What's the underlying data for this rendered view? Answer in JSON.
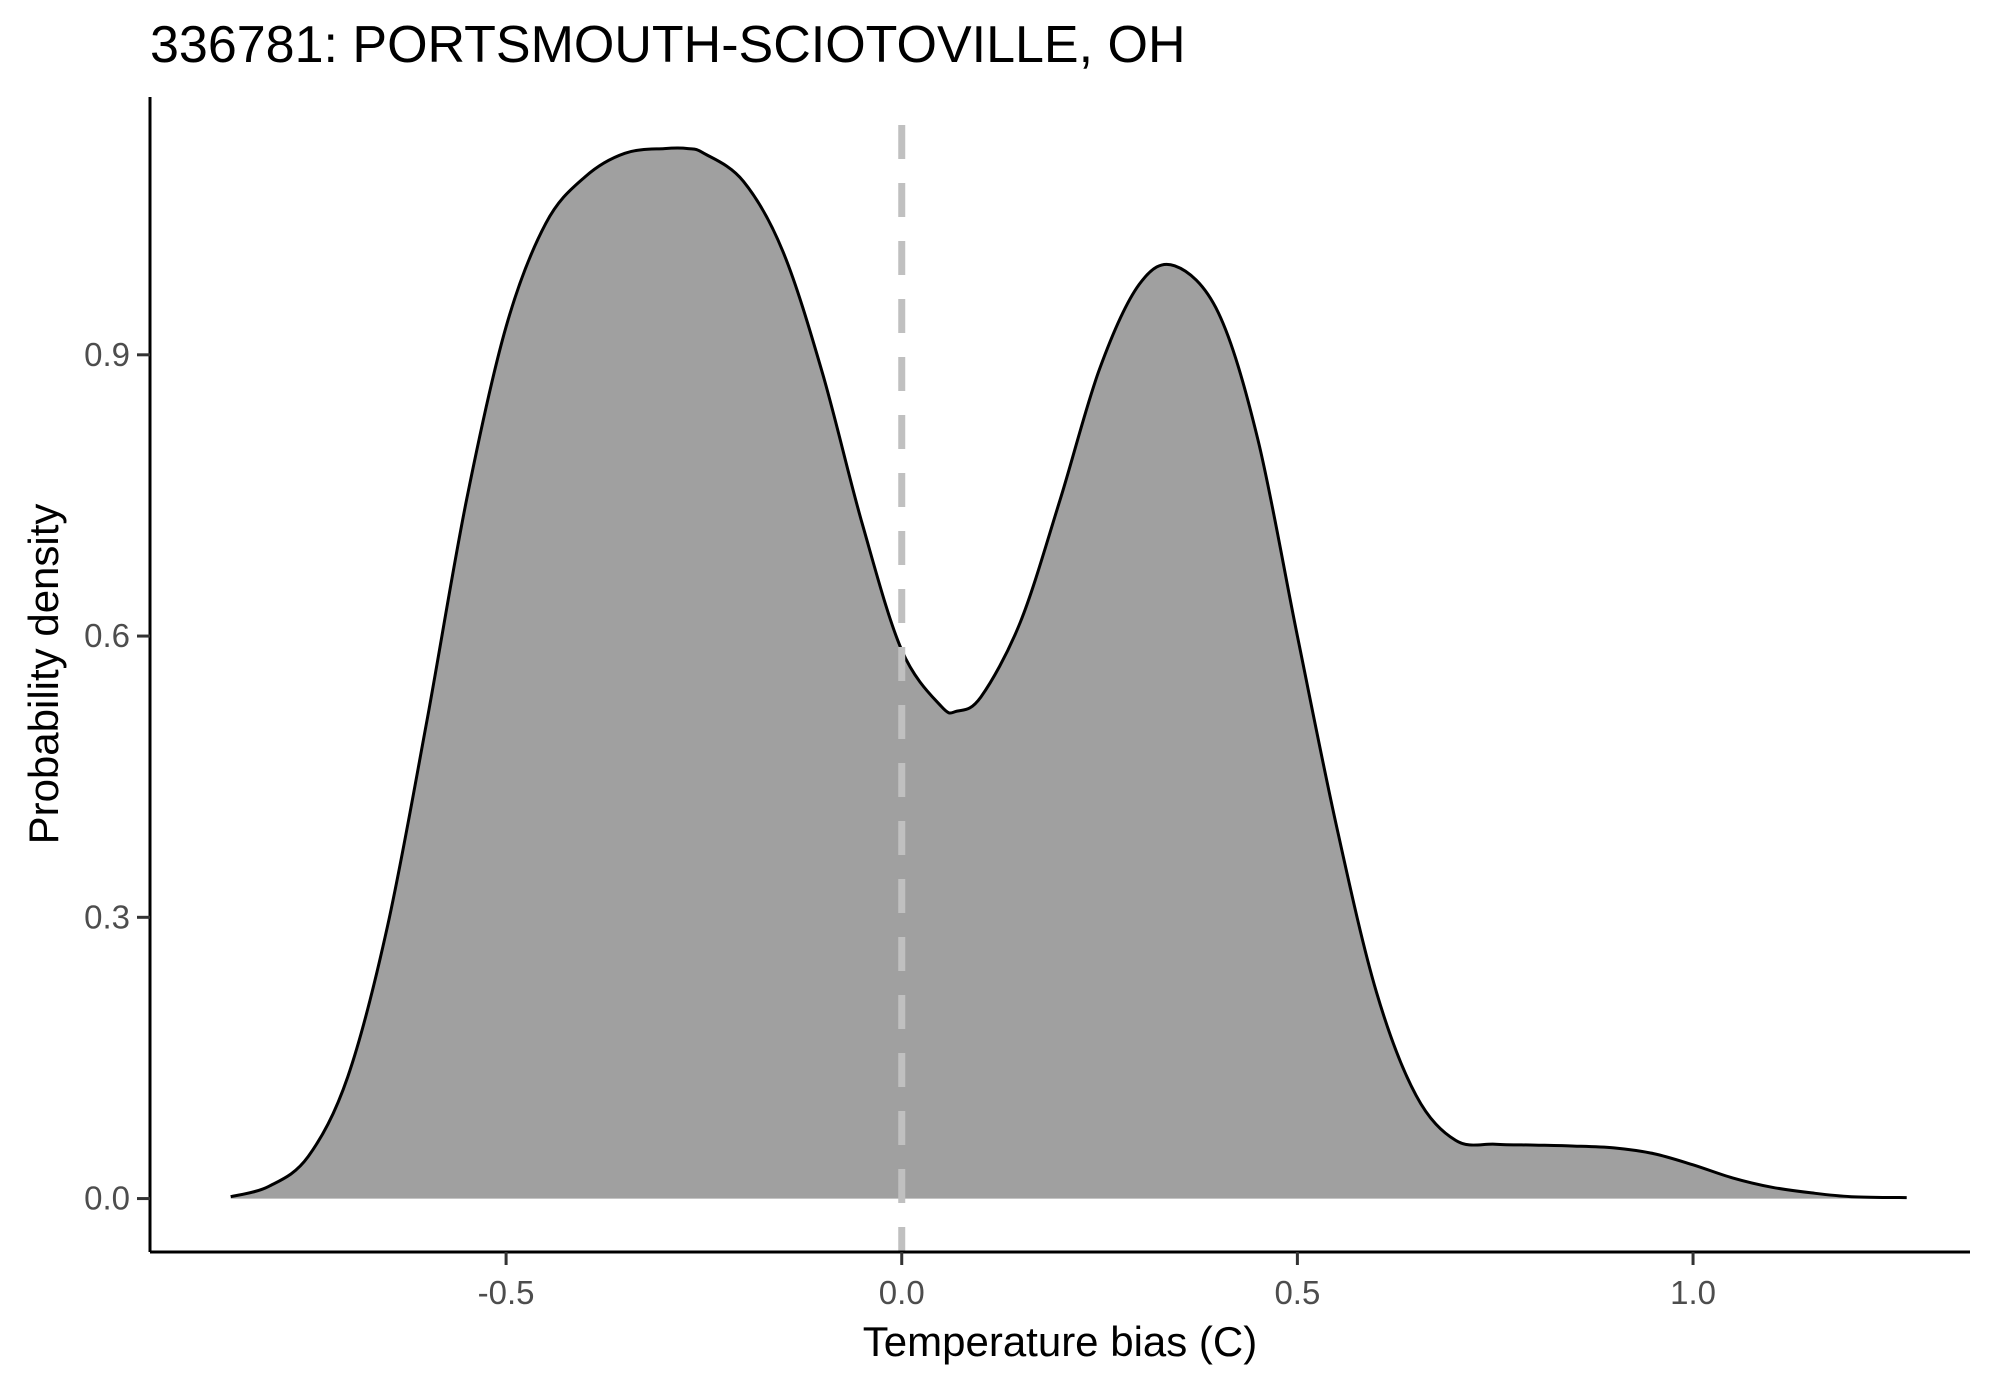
{
  "chart_data": {
    "type": "area",
    "title": "336781: PORTSMOUTH-SCIOTOVILLE, OH",
    "xlabel": "Temperature bias (C)",
    "ylabel": "Probability density",
    "xlim": [
      -0.95,
      1.35
    ],
    "ylim": [
      -0.057,
      1.175
    ],
    "x_ticks": [
      -0.5,
      0.0,
      0.5,
      1.0
    ],
    "x_tick_labels": [
      "-0.5",
      "0.0",
      "0.5",
      "1.0"
    ],
    "y_ticks": [
      0.0,
      0.3,
      0.6,
      0.9
    ],
    "y_tick_labels": [
      "0.0",
      "0.3",
      "0.6",
      "0.9"
    ],
    "reference_line": {
      "x": 0.0,
      "style": "dashed",
      "color": "#c0c0c0"
    },
    "fill_color": "#a0a0a0",
    "line_color": "#000000",
    "grid": false,
    "legend": "none",
    "series": [
      {
        "x": [
          -0.848,
          -0.8,
          -0.75,
          -0.7,
          -0.65,
          -0.6,
          -0.55,
          -0.5,
          -0.45,
          -0.4,
          -0.35,
          -0.3,
          -0.27,
          -0.25,
          -0.2,
          -0.15,
          -0.1,
          -0.05,
          0.0,
          0.05,
          0.07,
          0.1,
          0.15,
          0.2,
          0.25,
          0.3,
          0.345,
          0.4,
          0.45,
          0.5,
          0.55,
          0.6,
          0.65,
          0.7,
          0.75,
          0.8,
          0.85,
          0.9,
          0.95,
          1.0,
          1.05,
          1.1,
          1.15,
          1.2,
          1.27
        ],
        "values": [
          0.002,
          0.013,
          0.045,
          0.13,
          0.29,
          0.51,
          0.745,
          0.93,
          1.04,
          1.09,
          1.115,
          1.12,
          1.12,
          1.115,
          1.085,
          1.01,
          0.88,
          0.72,
          0.585,
          0.525,
          0.52,
          0.535,
          0.615,
          0.745,
          0.885,
          0.975,
          0.995,
          0.945,
          0.81,
          0.6,
          0.395,
          0.22,
          0.11,
          0.062,
          0.058,
          0.057,
          0.056,
          0.054,
          0.048,
          0.036,
          0.022,
          0.012,
          0.006,
          0.002,
          0.001
        ]
      }
    ]
  }
}
